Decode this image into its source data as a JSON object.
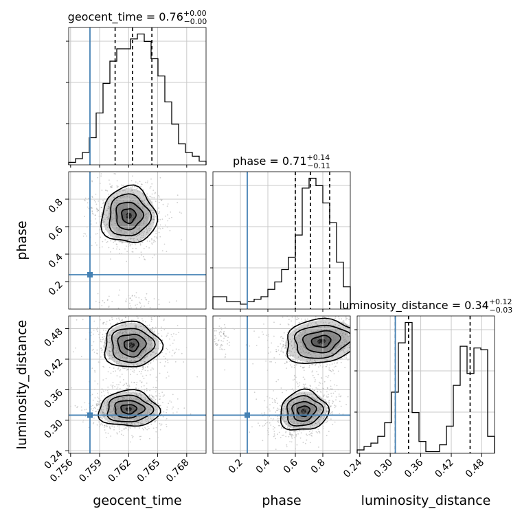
{
  "chart_data": {
    "type": "corner",
    "truth_color": "#4682b4",
    "parameters": [
      {
        "name": "geocent_time",
        "axis_label": "geocent_time",
        "lim": [
          0.7558,
          0.77
        ],
        "ticks": [
          "0.756",
          "0.759",
          "0.762",
          "0.765",
          "0.768"
        ],
        "tick_values": [
          0.756,
          0.759,
          0.762,
          0.765,
          0.768
        ],
        "truth": 0.758,
        "quantiles": [
          0.7606,
          0.7624,
          0.7644
        ],
        "title": {
          "base": "geocent_time = 0.76",
          "sup": "+0.00",
          "sub": "−0.00"
        },
        "hist": {
          "edges_start": 0.7558,
          "bin_width": 0.00071,
          "counts": [
            0.2,
            0.5,
            1.0,
            2.2,
            4.2,
            6.6,
            8.4,
            9.4,
            9.4,
            10.2,
            10.6,
            10.0,
            8.6,
            7.2,
            5.1,
            3.3,
            1.7,
            1.0,
            0.7,
            0.3
          ]
        }
      },
      {
        "name": "phase",
        "axis_label": "phase",
        "lim": [
          0.0,
          1.0
        ],
        "ticks": [
          "0.2",
          "0.4",
          "0.6",
          "0.8"
        ],
        "tick_values": [
          0.2,
          0.4,
          0.6,
          0.8
        ],
        "truth": 0.25,
        "quantiles": [
          0.6,
          0.71,
          0.85
        ],
        "title": {
          "base": "phase = 0.71",
          "sup": "+0.14",
          "sub": "−0.11"
        },
        "hist": {
          "edges_start": 0.0,
          "bin_width": 0.05,
          "counts": [
            0.5,
            0.5,
            0.3,
            0.3,
            0.2,
            0.3,
            0.4,
            0.5,
            0.8,
            1.1,
            1.6,
            2.1,
            3.0,
            4.9,
            5.3,
            5.0,
            4.3,
            3.5,
            1.9,
            0.9
          ]
        }
      },
      {
        "name": "luminosity_distance",
        "axis_label": "luminosity_distance",
        "lim": [
          0.235,
          0.505
        ],
        "ticks": [
          "0.24",
          "0.30",
          "0.36",
          "0.42",
          "0.48"
        ],
        "tick_values": [
          0.24,
          0.3,
          0.36,
          0.42,
          0.48
        ],
        "truth": 0.31,
        "quantiles": [
          0.31,
          0.336,
          0.457
        ],
        "title": {
          "base": "luminosity_distance = 0.34",
          "sup": "+0.12",
          "sub": "−0.03"
        },
        "hist": {
          "edges_start": 0.235,
          "bin_width": 0.0135,
          "counts": [
            0.2,
            0.4,
            0.6,
            1.0,
            1.8,
            3.6,
            6.5,
            7.7,
            2.4,
            0.7,
            0.1,
            0.1,
            0.5,
            1.6,
            4.0,
            6.3,
            4.7,
            6.2,
            6.1,
            1.0
          ]
        }
      }
    ],
    "pairs": [
      {
        "x": "geocent_time",
        "y": "phase",
        "blobs": [
          {
            "cx": 0.762,
            "cy": 0.68,
            "sx": 0.00145,
            "sy": 0.105
          }
        ],
        "scatter_extra": [
          {
            "cx": 0.7625,
            "cy": 0.05,
            "sx": 0.002,
            "sy": 0.04,
            "n": 60
          }
        ]
      },
      {
        "x": "geocent_time",
        "y": "luminosity_distance",
        "blobs": [
          {
            "cx": 0.762,
            "cy": 0.322,
            "sx": 0.0016,
            "sy": 0.018
          },
          {
            "cx": 0.7623,
            "cy": 0.448,
            "sx": 0.0015,
            "sy": 0.023
          }
        ]
      },
      {
        "x": "phase",
        "y": "luminosity_distance",
        "blobs": [
          {
            "cx": 0.66,
            "cy": 0.318,
            "sx": 0.09,
            "sy": 0.02,
            "tilt": -0.6
          },
          {
            "cx": 0.79,
            "cy": 0.455,
            "sx": 0.14,
            "sy": 0.022,
            "tilt": -0.4
          }
        ],
        "scatter_extra": [
          {
            "cx": 0.05,
            "cy": 0.465,
            "sx": 0.05,
            "sy": 0.02,
            "n": 70
          }
        ]
      }
    ]
  }
}
